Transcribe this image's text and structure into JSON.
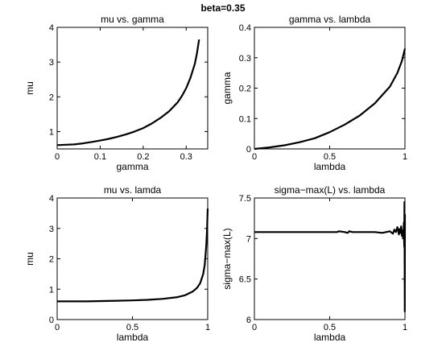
{
  "suptitle": "beta=0.35",
  "chart_data": [
    {
      "type": "line",
      "title": "mu vs. gamma",
      "xlabel": "gamma",
      "ylabel": "mu",
      "xlim": [
        0,
        0.35
      ],
      "ylim": [
        0.5,
        4
      ],
      "xticks": [
        "0",
        "0.1",
        "0.2",
        "0.3"
      ],
      "yticks": [
        "1",
        "2",
        "3",
        "4"
      ],
      "series": [
        {
          "x": [
            0,
            0.02,
            0.04,
            0.06,
            0.08,
            0.1,
            0.12,
            0.14,
            0.16,
            0.18,
            0.2,
            0.22,
            0.24,
            0.26,
            0.28,
            0.29,
            0.3,
            0.31,
            0.32,
            0.325,
            0.33
          ],
          "values": [
            0.61,
            0.62,
            0.63,
            0.66,
            0.7,
            0.74,
            0.79,
            0.85,
            0.92,
            1.0,
            1.1,
            1.23,
            1.39,
            1.58,
            1.84,
            2.02,
            2.25,
            2.55,
            2.95,
            3.25,
            3.65
          ]
        }
      ]
    },
    {
      "type": "line",
      "title": "gamma vs. lambda",
      "xlabel": "lambda",
      "ylabel": "gamma",
      "xlim": [
        0,
        1
      ],
      "ylim": [
        0,
        0.4
      ],
      "xticks": [
        "0",
        "0.5",
        "1"
      ],
      "yticks": [
        "0",
        "0.1",
        "0.2",
        "0.3",
        "0.4"
      ],
      "series": [
        {
          "x": [
            0,
            0.1,
            0.2,
            0.3,
            0.4,
            0.5,
            0.6,
            0.7,
            0.8,
            0.9,
            0.95,
            0.98,
            1.0
          ],
          "values": [
            0,
            0.005,
            0.012,
            0.022,
            0.035,
            0.055,
            0.08,
            0.11,
            0.15,
            0.205,
            0.25,
            0.29,
            0.33
          ]
        }
      ]
    },
    {
      "type": "line",
      "title": "mu vs. lamda",
      "xlabel": "lambda",
      "ylabel": "mu",
      "xlim": [
        0,
        1
      ],
      "ylim": [
        0,
        4
      ],
      "xticks": [
        "0",
        "0.5",
        "1"
      ],
      "yticks": [
        "0",
        "1",
        "2",
        "3",
        "4"
      ],
      "series": [
        {
          "x": [
            0,
            0.1,
            0.2,
            0.3,
            0.4,
            0.5,
            0.6,
            0.7,
            0.8,
            0.85,
            0.9,
            0.93,
            0.95,
            0.97,
            0.98,
            0.99,
            0.995,
            1.0
          ],
          "values": [
            0.6,
            0.6,
            0.6,
            0.61,
            0.62,
            0.63,
            0.65,
            0.68,
            0.74,
            0.8,
            0.92,
            1.05,
            1.2,
            1.5,
            1.8,
            2.4,
            2.9,
            3.65
          ]
        }
      ]
    },
    {
      "type": "line",
      "title": "sigma−max(L) vs. lambda",
      "xlabel": "lambda",
      "ylabel": "sigma−max(L)",
      "xlim": [
        0,
        1
      ],
      "ylim": [
        6,
        7.5
      ],
      "xticks": [
        "0",
        "0.5",
        "1"
      ],
      "yticks": [
        "6",
        "6.5",
        "7",
        "7.5"
      ],
      "series": [
        {
          "x": [
            0,
            0.1,
            0.2,
            0.3,
            0.4,
            0.5,
            0.55,
            0.56,
            0.6,
            0.62,
            0.63,
            0.65,
            0.7,
            0.8,
            0.85,
            0.9,
            0.92,
            0.93,
            0.94,
            0.95,
            0.96,
            0.965,
            0.97,
            0.975,
            0.98,
            0.985,
            0.99,
            0.993,
            0.995,
            0.997,
            0.999,
            1.0
          ],
          "values": [
            7.08,
            7.08,
            7.08,
            7.08,
            7.08,
            7.08,
            7.08,
            7.09,
            7.08,
            7.07,
            7.09,
            7.08,
            7.08,
            7.08,
            7.07,
            7.09,
            7.06,
            7.11,
            7.08,
            7.14,
            7.05,
            7.12,
            7.07,
            7.15,
            7.03,
            7.1,
            7.0,
            7.2,
            6.9,
            7.45,
            6.1,
            7.3
          ]
        }
      ]
    }
  ]
}
